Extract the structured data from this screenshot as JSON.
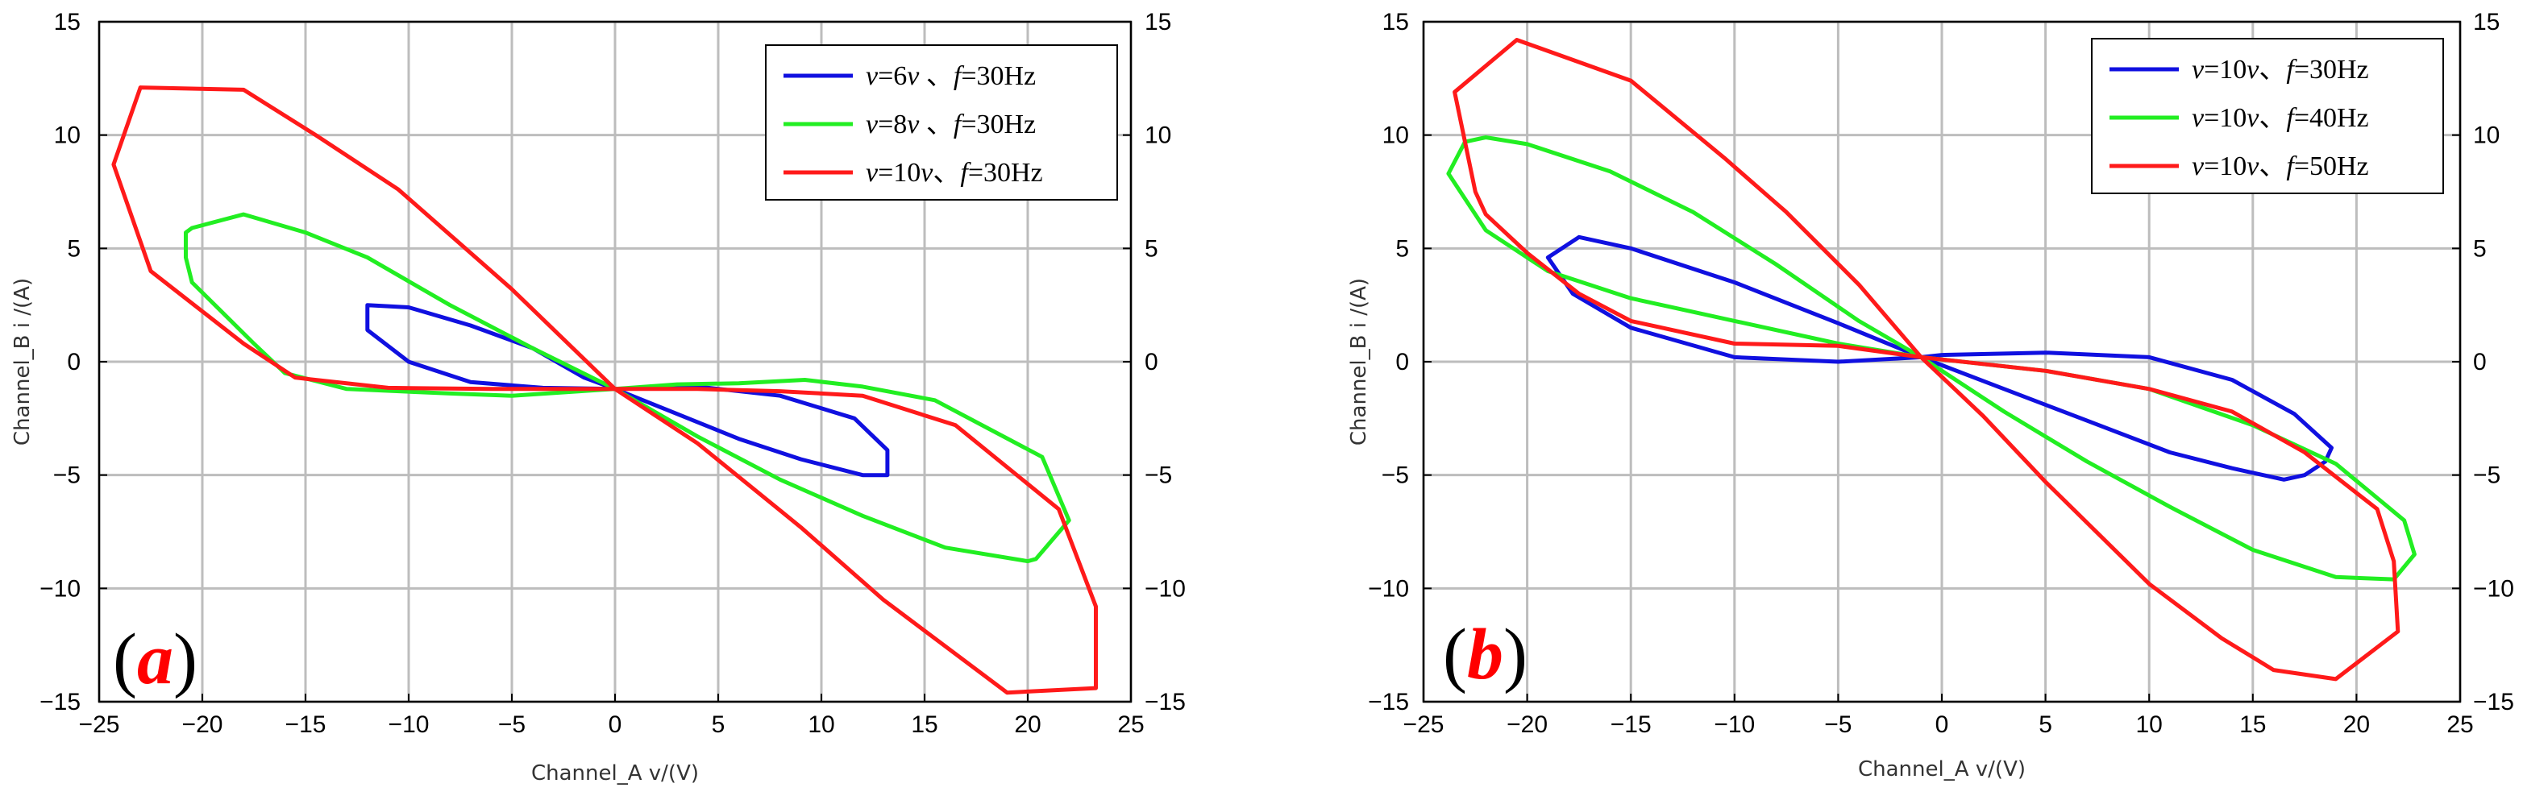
{
  "chart_data": [
    {
      "type": "line",
      "panel_label": {
        "open": "(",
        "letter": "a",
        "close": ")"
      },
      "xlabel": "Channel_A   v/(V)",
      "ylabel": "Channel_B  i /(A)",
      "xlim": [
        -25,
        25
      ],
      "ylim": [
        -15,
        15
      ],
      "xticks": [
        -25,
        -20,
        -15,
        -10,
        -5,
        0,
        5,
        10,
        15,
        20,
        25
      ],
      "yticks": [
        -15,
        -10,
        -5,
        0,
        5,
        10,
        15
      ],
      "grid": true,
      "legend_position": "top-right",
      "series": [
        {
          "name": "v=6v   、f=30Hz",
          "legend": {
            "v": "v",
            "eq1": "=6",
            "unit": "v",
            "sep": "   、",
            "f": "f",
            "eq2": "=30Hz"
          },
          "color": "#1010e0",
          "points": [
            [
              -12,
              2.5
            ],
            [
              -10,
              2.4
            ],
            [
              -7,
              1.6
            ],
            [
              -4,
              0.6
            ],
            [
              -1.5,
              -0.7
            ],
            [
              0,
              -1.2
            ],
            [
              3,
              -2.3
            ],
            [
              6,
              -3.4
            ],
            [
              9,
              -4.3
            ],
            [
              12,
              -5
            ],
            [
              13.2,
              -5
            ],
            [
              13.2,
              -3.9
            ],
            [
              11.6,
              -2.5
            ],
            [
              8,
              -1.5
            ],
            [
              4,
              -1.1
            ],
            [
              0,
              -1.2
            ],
            [
              -3.5,
              -1.15
            ],
            [
              -7,
              -0.9
            ],
            [
              -10,
              0
            ],
            [
              -12,
              1.4
            ],
            [
              -12,
              2.5
            ]
          ]
        },
        {
          "name": "v=8v   、f=30Hz",
          "legend": {
            "v": "v",
            "eq1": "=8",
            "unit": "v",
            "sep": "   、",
            "f": "f",
            "eq2": "=30Hz"
          },
          "color": "#22ee22",
          "points": [
            [
              -20.8,
              5.7
            ],
            [
              -20.5,
              5.9
            ],
            [
              -18,
              6.5
            ],
            [
              -15,
              5.7
            ],
            [
              -12,
              4.6
            ],
            [
              -8,
              2.5
            ],
            [
              -4,
              0.6
            ],
            [
              0,
              -1.2
            ],
            [
              4,
              -3.3
            ],
            [
              8,
              -5.2
            ],
            [
              12,
              -6.8
            ],
            [
              16,
              -8.2
            ],
            [
              20,
              -8.8
            ],
            [
              20.4,
              -8.7
            ],
            [
              22,
              -7
            ],
            [
              20.7,
              -4.2
            ],
            [
              15.5,
              -1.7
            ],
            [
              12,
              -1.1
            ],
            [
              9.2,
              -0.8
            ],
            [
              6,
              -0.95
            ],
            [
              3,
              -1
            ],
            [
              0,
              -1.2
            ],
            [
              -5,
              -1.5
            ],
            [
              -8,
              -1.4
            ],
            [
              -13,
              -1.2
            ],
            [
              -16,
              -0.5
            ],
            [
              -17.5,
              0.8
            ],
            [
              -20.5,
              3.5
            ],
            [
              -20.8,
              4.6
            ],
            [
              -20.8,
              5.7
            ]
          ]
        },
        {
          "name": "v=10v、f=30Hz",
          "legend": {
            "v": "v",
            "eq1": "=10",
            "unit": "v",
            "sep": "、",
            "f": "f",
            "eq2": "=30Hz"
          },
          "color": "#ff1a1a",
          "points": [
            [
              -23,
              12.1
            ],
            [
              -18,
              12
            ],
            [
              -14.5,
              10
            ],
            [
              -10.5,
              7.6
            ],
            [
              -5,
              3.2
            ],
            [
              0,
              -1.2
            ],
            [
              4,
              -3.6
            ],
            [
              9,
              -7.3
            ],
            [
              13,
              -10.5
            ],
            [
              19,
              -14.6
            ],
            [
              23.3,
              -14.4
            ],
            [
              23.3,
              -10.8
            ],
            [
              21.5,
              -6.5
            ],
            [
              16.5,
              -2.8
            ],
            [
              12,
              -1.5
            ],
            [
              8,
              -1.3
            ],
            [
              4,
              -1.2
            ],
            [
              0,
              -1.2
            ],
            [
              -6,
              -1.2
            ],
            [
              -11,
              -1.15
            ],
            [
              -15.5,
              -0.7
            ],
            [
              -18,
              0.8
            ],
            [
              -22.5,
              4
            ],
            [
              -24.3,
              8.7
            ],
            [
              -23,
              12.1
            ]
          ]
        }
      ]
    },
    {
      "type": "line",
      "panel_label": {
        "open": "(",
        "letter": "b",
        "close": ")"
      },
      "xlabel": "Channel_A   v/(V)",
      "ylabel": "Channel_B  i /(A)",
      "xlim": [
        -25,
        25
      ],
      "ylim": [
        -15,
        15
      ],
      "xticks": [
        -25,
        -20,
        -15,
        -10,
        -5,
        0,
        5,
        10,
        15,
        20,
        25
      ],
      "yticks": [
        -15,
        -10,
        -5,
        0,
        5,
        10,
        15
      ],
      "grid": true,
      "legend_position": "top-right",
      "series": [
        {
          "name": "v=10v、f=30Hz",
          "legend": {
            "v": "v",
            "eq1": "=10",
            "unit": "v",
            "sep": "、",
            "f": "f",
            "eq2": "=30Hz"
          },
          "color": "#1010e0",
          "points": [
            [
              -19,
              4.6
            ],
            [
              -17.5,
              5.5
            ],
            [
              -15,
              5
            ],
            [
              -10,
              3.5
            ],
            [
              -5,
              1.7
            ],
            [
              -1,
              0.2
            ],
            [
              3,
              -1.2
            ],
            [
              7,
              -2.6
            ],
            [
              11,
              -4
            ],
            [
              14,
              -4.7
            ],
            [
              16.5,
              -5.2
            ],
            [
              17.5,
              -5
            ],
            [
              18.5,
              -4.4
            ],
            [
              18.8,
              -3.8
            ],
            [
              17,
              -2.3
            ],
            [
              14,
              -0.8
            ],
            [
              10,
              0.2
            ],
            [
              5,
              0.4
            ],
            [
              0,
              0.3
            ],
            [
              -1,
              0.2
            ],
            [
              -5,
              0
            ],
            [
              -10,
              0.2
            ],
            [
              -15,
              1.5
            ],
            [
              -17.8,
              3
            ],
            [
              -19,
              4.6
            ]
          ]
        },
        {
          "name": "v=10v、f=40Hz",
          "legend": {
            "v": "v",
            "eq1": "=10",
            "unit": "v",
            "sep": "、",
            "f": "f",
            "eq2": "=40Hz"
          },
          "color": "#22ee22",
          "points": [
            [
              -23.8,
              8.3
            ],
            [
              -23,
              9.7
            ],
            [
              -22,
              9.9
            ],
            [
              -20,
              9.6
            ],
            [
              -16,
              8.4
            ],
            [
              -12,
              6.6
            ],
            [
              -8,
              4.3
            ],
            [
              -4,
              1.8
            ],
            [
              -1,
              0.2
            ],
            [
              3,
              -2.2
            ],
            [
              7,
              -4.4
            ],
            [
              11,
              -6.4
            ],
            [
              15,
              -8.3
            ],
            [
              19,
              -9.5
            ],
            [
              21.8,
              -9.6
            ],
            [
              22.8,
              -8.5
            ],
            [
              22.3,
              -7
            ],
            [
              19,
              -4.5
            ],
            [
              15,
              -2.8
            ],
            [
              10,
              -1.2
            ],
            [
              5,
              -0.4
            ],
            [
              -1,
              0.2
            ],
            [
              -5,
              0.8
            ],
            [
              -10,
              1.8
            ],
            [
              -15,
              2.8
            ],
            [
              -19,
              4
            ],
            [
              -22,
              5.8
            ],
            [
              -23.8,
              8.3
            ]
          ]
        },
        {
          "name": "v=10v、f=50Hz",
          "legend": {
            "v": "v",
            "eq1": "=10",
            "unit": "v",
            "sep": "、",
            "f": "f",
            "eq2": "=50Hz"
          },
          "color": "#ff1a1a",
          "points": [
            [
              -20.5,
              14.2
            ],
            [
              -15,
              12.4
            ],
            [
              -10.5,
              9
            ],
            [
              -7.5,
              6.6
            ],
            [
              -4,
              3.4
            ],
            [
              -1,
              0.2
            ],
            [
              2,
              -2.4
            ],
            [
              5,
              -5.3
            ],
            [
              10,
              -9.8
            ],
            [
              13.5,
              -12.2
            ],
            [
              16,
              -13.6
            ],
            [
              19,
              -14
            ],
            [
              22,
              -11.9
            ],
            [
              21.8,
              -8.8
            ],
            [
              21,
              -6.5
            ],
            [
              17.5,
              -4
            ],
            [
              14,
              -2.2
            ],
            [
              10,
              -1.2
            ],
            [
              5,
              -0.4
            ],
            [
              -1,
              0.2
            ],
            [
              -5,
              0.7
            ],
            [
              -10,
              0.8
            ],
            [
              -15,
              1.8
            ],
            [
              -17.5,
              3
            ],
            [
              -20,
              4.8
            ],
            [
              -22,
              6.5
            ],
            [
              -22.5,
              7.5
            ],
            [
              -23.5,
              11.9
            ],
            [
              -20.5,
              14.2
            ]
          ]
        }
      ]
    }
  ]
}
